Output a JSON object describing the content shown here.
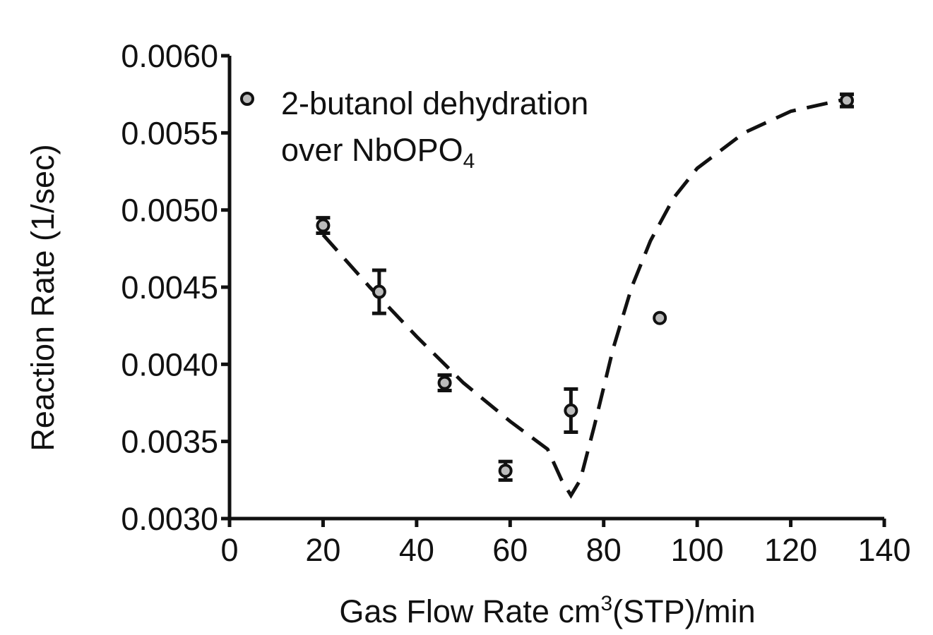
{
  "chart_data": {
    "type": "scatter",
    "title": "",
    "xlabel": "Gas Flow Rate cm",
    "xlabel_sup": "3",
    "xlabel_tail": "(STP)/min",
    "ylabel": "Reaction Rate (1/sec)",
    "xlim": [
      0,
      140
    ],
    "ylim": [
      0.003,
      0.006
    ],
    "xticks": [
      "0",
      "20",
      "40",
      "60",
      "80",
      "100",
      "120",
      "140"
    ],
    "yticks": [
      "0.0030",
      "0.0035",
      "0.0040",
      "0.0045",
      "0.0050",
      "0.0055",
      "0.0060"
    ],
    "grid": false,
    "legend": {
      "placement": "top-left",
      "line1": "2-butanol dehydration",
      "line2": "over NbOPO",
      "line2_sub": "4"
    },
    "series": [
      {
        "name": "2-butanol dehydration over NbOPO4",
        "marker": "open-circle",
        "x": [
          20,
          32,
          46,
          59,
          73,
          92,
          132
        ],
        "y": [
          0.0049,
          0.00447,
          0.00388,
          0.00331,
          0.0037,
          0.0043,
          0.00571
        ],
        "err": [
          5e-05,
          0.00014,
          5e-05,
          6e-05,
          0.00014,
          0,
          4e-05
        ]
      }
    ],
    "fit_curve": {
      "style": "dashed",
      "x": [
        20,
        30,
        40,
        50,
        60,
        68,
        71,
        73,
        75,
        78,
        82,
        86,
        90,
        95,
        100,
        110,
        120,
        132
      ],
      "y": [
        0.00484,
        0.0045,
        0.00418,
        0.00388,
        0.00363,
        0.00345,
        0.00325,
        0.00315,
        0.00325,
        0.0036,
        0.0041,
        0.0045,
        0.0048,
        0.00508,
        0.00527,
        0.0055,
        0.00564,
        0.00572
      ]
    }
  }
}
